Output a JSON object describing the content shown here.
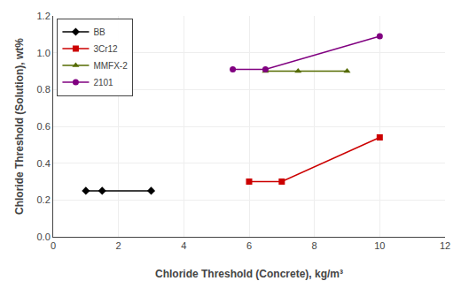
{
  "chart_data": {
    "type": "line",
    "xlabel": "Chloride Threshold (Concrete), kg/m³",
    "ylabel": "Chloride Threshold (Solution), wt%",
    "xlim": [
      0,
      12
    ],
    "ylim": [
      0.0,
      1.2
    ],
    "xticks": [
      0,
      2,
      4,
      6,
      8,
      10,
      12
    ],
    "yticks": [
      {
        "value": 0.0,
        "label": "0.0"
      },
      0.2,
      0.4,
      0.6,
      0.8,
      {
        "value": 1.0,
        "label": "1.0"
      },
      1.2
    ],
    "grid": true,
    "legend": "upper left",
    "series": [
      {
        "name": "BB",
        "color": "#000000",
        "marker": "diamond",
        "x": [
          1.0,
          1.5,
          3.0
        ],
        "values": [
          0.25,
          0.25,
          0.25
        ]
      },
      {
        "name": "3Cr12",
        "color": "#CC0000",
        "marker": "square",
        "x": [
          6.0,
          7.0,
          10.0
        ],
        "values": [
          0.3,
          0.3,
          0.54
        ]
      },
      {
        "name": "MMFX-2",
        "color": "#556B00",
        "marker": "triangle-up",
        "x": [
          6.5,
          7.5,
          9.0
        ],
        "values": [
          0.9,
          0.9,
          0.9
        ]
      },
      {
        "name": "2101",
        "color": "#800080",
        "marker": "circle",
        "x": [
          5.5,
          6.5,
          10.0
        ],
        "values": [
          0.91,
          0.91,
          1.09
        ]
      }
    ]
  }
}
